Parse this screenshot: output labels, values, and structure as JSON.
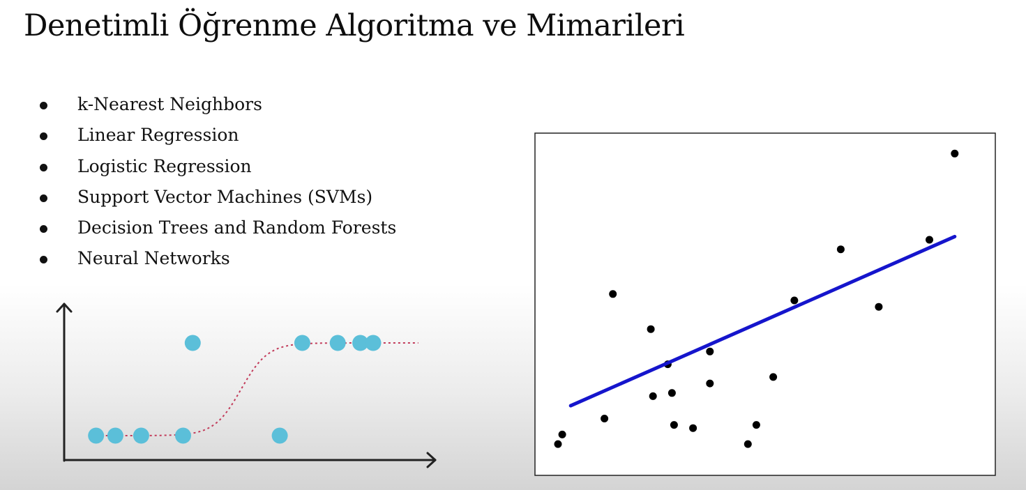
{
  "slide": {
    "title": "Denetimli Öğrenme Algoritma ve Mimarileri",
    "bullets": [
      "k-Nearest Neighbors",
      "Linear Regression",
      "Logistic Regression",
      "Support Vector Machines (SVMs)",
      "Decision Trees and Random Forests",
      "Neural Networks"
    ]
  },
  "colors": {
    "logistic_point": "#5bbfd9",
    "logistic_curve": "#c23b5a",
    "regression_line": "#1515cc",
    "scatter_point": "#000000",
    "axis": "#222222"
  },
  "chart_data": [
    {
      "type": "scatter",
      "title": "",
      "xlabel": "",
      "ylabel": "",
      "grid": false,
      "xlim": [
        0,
        10
      ],
      "ylim": [
        0,
        1
      ],
      "series": [
        {
          "kind": "points",
          "points": [
            {
              "x": 0.6,
              "y": 0
            },
            {
              "x": 1.2,
              "y": 0
            },
            {
              "x": 2.0,
              "y": 0
            },
            {
              "x": 3.3,
              "y": 0
            },
            {
              "x": 3.6,
              "y": 1
            },
            {
              "x": 6.3,
              "y": 0
            },
            {
              "x": 7.0,
              "y": 1
            },
            {
              "x": 8.1,
              "y": 1
            },
            {
              "x": 8.8,
              "y": 1
            },
            {
              "x": 9.2,
              "y": 1
            }
          ]
        },
        {
          "kind": "sigmoid-curve",
          "style": "dotted",
          "x_range": [
            0.6,
            10.6
          ],
          "midpoint": 5.1,
          "steepness": 2.4
        }
      ]
    },
    {
      "type": "scatter",
      "title": "",
      "xlabel": "",
      "ylabel": "",
      "grid": false,
      "xlim": [
        0,
        10
      ],
      "ylim": [
        0,
        10
      ],
      "series": [
        {
          "kind": "points",
          "points": [
            {
              "x": 0.1,
              "y": 0.5
            },
            {
              "x": 0.2,
              "y": 0.8
            },
            {
              "x": 1.2,
              "y": 1.3
            },
            {
              "x": 1.4,
              "y": 5.2
            },
            {
              "x": 2.3,
              "y": 4.1
            },
            {
              "x": 2.35,
              "y": 2.0
            },
            {
              "x": 2.7,
              "y": 3.0
            },
            {
              "x": 2.8,
              "y": 2.1
            },
            {
              "x": 2.85,
              "y": 1.1
            },
            {
              "x": 3.3,
              "y": 1.0
            },
            {
              "x": 3.7,
              "y": 3.4
            },
            {
              "x": 3.7,
              "y": 2.4
            },
            {
              "x": 4.6,
              "y": 0.5
            },
            {
              "x": 4.8,
              "y": 1.1
            },
            {
              "x": 5.2,
              "y": 2.6
            },
            {
              "x": 5.7,
              "y": 5.0
            },
            {
              "x": 6.8,
              "y": 6.6
            },
            {
              "x": 7.7,
              "y": 4.8
            },
            {
              "x": 8.9,
              "y": 6.9
            },
            {
              "x": 9.5,
              "y": 9.6
            }
          ]
        },
        {
          "kind": "regression-line",
          "from": {
            "x": 0.4,
            "y": 1.7
          },
          "to": {
            "x": 9.5,
            "y": 7.0
          }
        }
      ]
    }
  ]
}
